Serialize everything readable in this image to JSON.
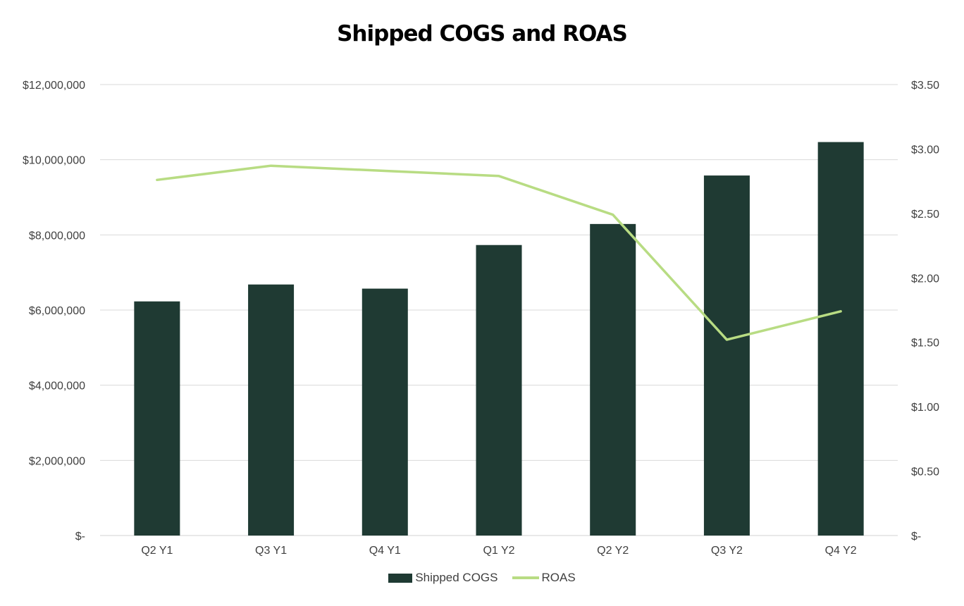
{
  "chart_data": {
    "type": "bar",
    "title": "Shipped COGS and ROAS",
    "categories": [
      "Q2 Y1",
      "Q3 Y1",
      "Q4 Y1",
      "Q1 Y2",
      "Q2 Y2",
      "Q3 Y2",
      "Q4 Y2"
    ],
    "series": [
      {
        "name": "Shipped COGS",
        "type": "bar",
        "axis": "left",
        "color": "#1f3a33",
        "values": [
          6230000,
          6680000,
          6570000,
          7730000,
          8290000,
          9580000,
          10470000
        ]
      },
      {
        "name": "ROAS",
        "type": "line",
        "axis": "right",
        "color": "#b8dc83",
        "values": [
          2.76,
          2.87,
          2.83,
          2.79,
          2.49,
          1.52,
          1.74
        ]
      }
    ],
    "ylim": [
      0,
      12000000
    ],
    "y2lim": [
      0,
      3.5
    ],
    "yticks": [
      "$-",
      "$2,000,000",
      "$4,000,000",
      "$6,000,000",
      "$8,000,000",
      "$10,000,000",
      "$12,000,000"
    ],
    "y2ticks": [
      "$-",
      "$0.50",
      "$1.00",
      "$1.50",
      "$2.00",
      "$2.50",
      "$3.00",
      "$3.50"
    ],
    "grid": true,
    "legend": "bottom"
  }
}
